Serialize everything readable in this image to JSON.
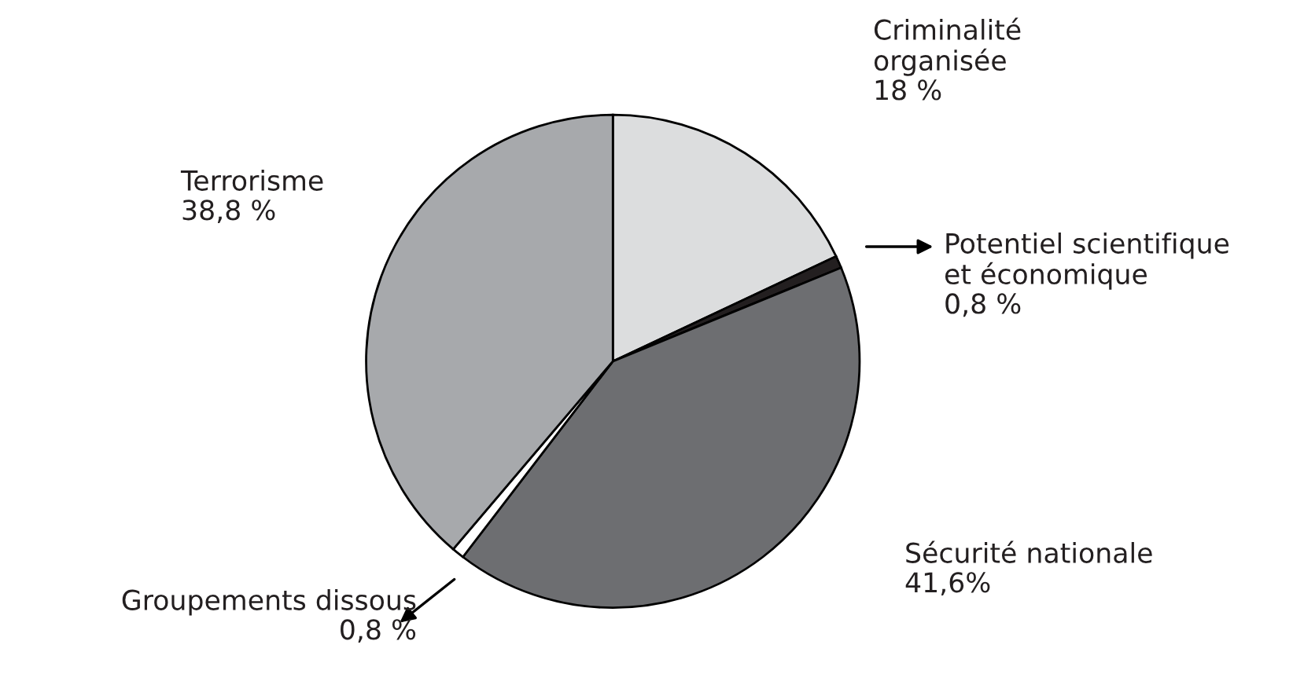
{
  "chart_data": {
    "type": "pie",
    "categories": [
      "Criminalité\norganisée",
      "Potentiel scientifique\net économique",
      "Sécurité nationale",
      "Groupements dissous",
      "Terrorisme"
    ],
    "values": [
      18,
      0.8,
      41.6,
      0.8,
      38.8
    ],
    "value_labels": [
      "18 %",
      "0,8 %",
      "41,6%",
      "0,8 %",
      "38,8 %"
    ],
    "colors": [
      "#dcddde",
      "#231f20",
      "#6d6e71",
      "#ffffff",
      "#a7a9ac"
    ],
    "legend": false
  }
}
